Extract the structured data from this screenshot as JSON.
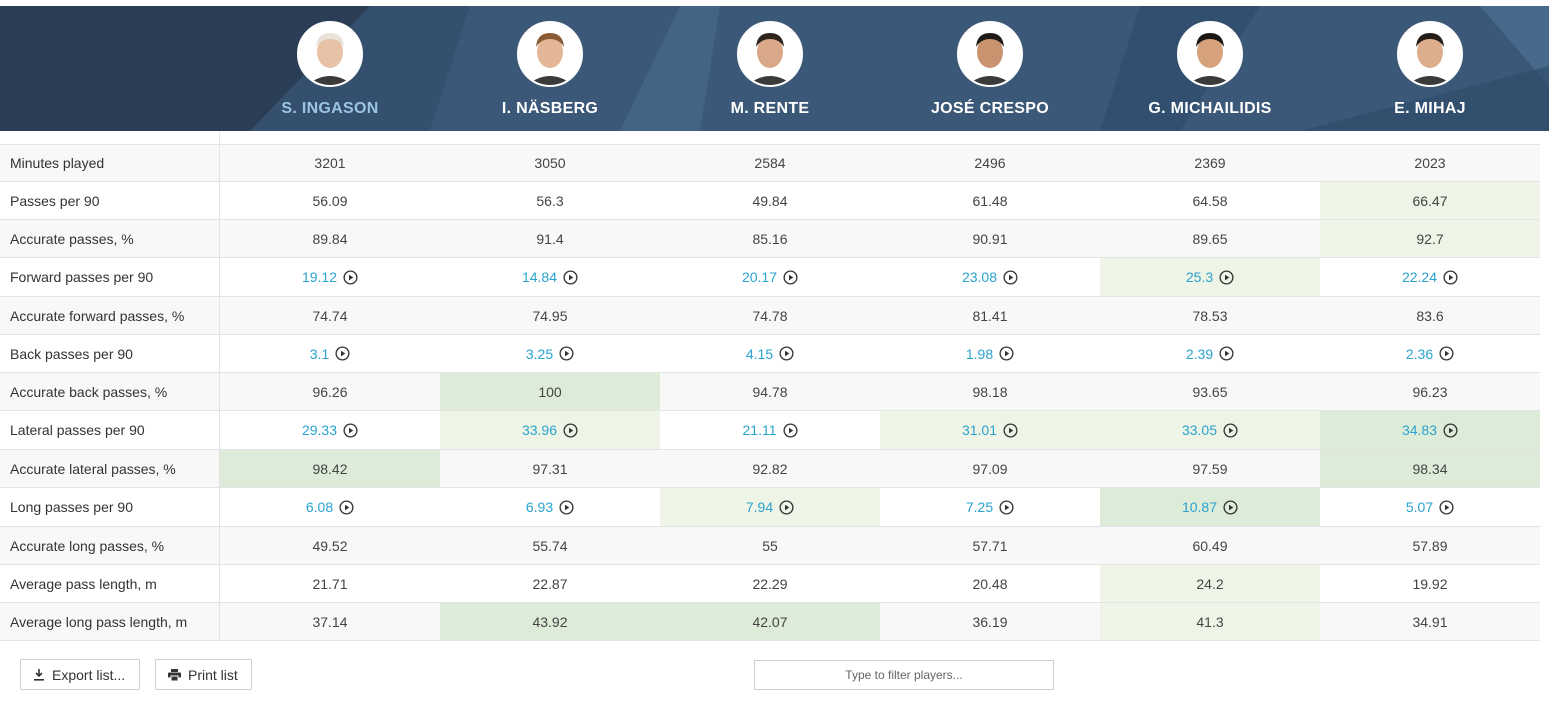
{
  "players": [
    {
      "name": "S. INGASON",
      "highlight": true
    },
    {
      "name": "I. NÄSBERG",
      "highlight": false
    },
    {
      "name": "M. RENTE",
      "highlight": false
    },
    {
      "name": "JOSÉ CRESPO",
      "highlight": false
    },
    {
      "name": "G. MICHAILIDIS",
      "highlight": false
    },
    {
      "name": "E. MIHAJ",
      "highlight": false
    }
  ],
  "rows": [
    {
      "label": "Minutes played",
      "video": false,
      "values": [
        "3201",
        "3050",
        "2584",
        "2496",
        "2369",
        "2023"
      ],
      "highlight": [
        0,
        0,
        0,
        0,
        0,
        0
      ]
    },
    {
      "label": "Passes per 90",
      "video": false,
      "values": [
        "56.09",
        "56.3",
        "49.84",
        "61.48",
        "64.58",
        "66.47"
      ],
      "highlight": [
        0,
        0,
        0,
        0,
        0,
        1
      ]
    },
    {
      "label": "Accurate passes, %",
      "video": false,
      "values": [
        "89.84",
        "91.4",
        "85.16",
        "90.91",
        "89.65",
        "92.7"
      ],
      "highlight": [
        0,
        0,
        0,
        0,
        0,
        1
      ]
    },
    {
      "label": "Forward passes per 90",
      "video": true,
      "values": [
        "19.12",
        "14.84",
        "20.17",
        "23.08",
        "25.3",
        "22.24"
      ],
      "highlight": [
        0,
        0,
        0,
        0,
        1,
        0
      ]
    },
    {
      "label": "Accurate forward passes, %",
      "video": false,
      "values": [
        "74.74",
        "74.95",
        "74.78",
        "81.41",
        "78.53",
        "83.6"
      ],
      "highlight": [
        0,
        0,
        0,
        0,
        0,
        0
      ]
    },
    {
      "label": "Back passes per 90",
      "video": true,
      "values": [
        "3.1",
        "3.25",
        "4.15",
        "1.98",
        "2.39",
        "2.36"
      ],
      "highlight": [
        0,
        0,
        0,
        0,
        0,
        0
      ]
    },
    {
      "label": "Accurate back passes, %",
      "video": false,
      "values": [
        "96.26",
        "100",
        "94.78",
        "98.18",
        "93.65",
        "96.23"
      ],
      "highlight": [
        0,
        2,
        0,
        0,
        0,
        0
      ]
    },
    {
      "label": "Lateral passes per 90",
      "video": true,
      "values": [
        "29.33",
        "33.96",
        "21.11",
        "31.01",
        "33.05",
        "34.83"
      ],
      "highlight": [
        0,
        1,
        0,
        1,
        1,
        2
      ]
    },
    {
      "label": "Accurate lateral passes, %",
      "video": false,
      "values": [
        "98.42",
        "97.31",
        "92.82",
        "97.09",
        "97.59",
        "98.34"
      ],
      "highlight": [
        2,
        0,
        0,
        0,
        0,
        2
      ]
    },
    {
      "label": "Long passes per 90",
      "video": true,
      "values": [
        "6.08",
        "6.93",
        "7.94",
        "7.25",
        "10.87",
        "5.07"
      ],
      "highlight": [
        0,
        0,
        1,
        0,
        2,
        0
      ]
    },
    {
      "label": "Accurate long passes, %",
      "video": false,
      "values": [
        "49.52",
        "55.74",
        "55",
        "57.71",
        "60.49",
        "57.89"
      ],
      "highlight": [
        0,
        0,
        0,
        0,
        0,
        0
      ]
    },
    {
      "label": "Average pass length, m",
      "video": false,
      "values": [
        "21.71",
        "22.87",
        "22.29",
        "20.48",
        "24.2",
        "19.92"
      ],
      "highlight": [
        0,
        0,
        0,
        0,
        1,
        0
      ]
    },
    {
      "label": "Average long pass length, m",
      "video": false,
      "values": [
        "37.14",
        "43.92",
        "42.07",
        "36.19",
        "41.3",
        "34.91"
      ],
      "highlight": [
        0,
        2,
        2,
        0,
        1,
        0
      ]
    }
  ],
  "footer": {
    "export_label": "Export list...",
    "print_label": "Print list",
    "filter_placeholder": "Type to filter players..."
  },
  "colors": {
    "header_bg": "#3b5878",
    "link": "#2aa2cf",
    "highlight_light": "#eef5e6",
    "highlight_strong": "#ddecd9"
  }
}
